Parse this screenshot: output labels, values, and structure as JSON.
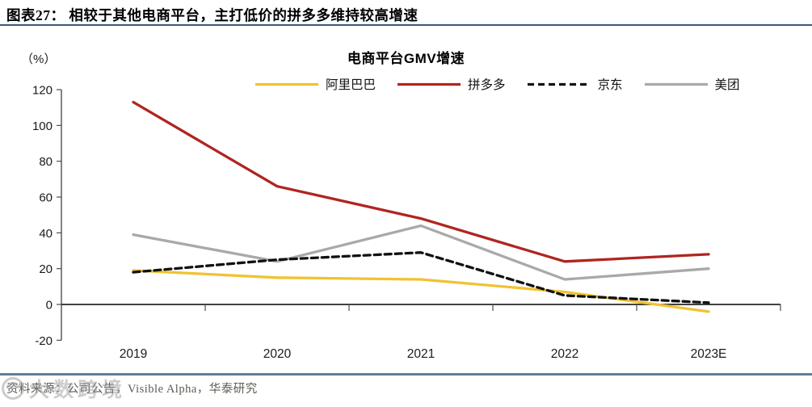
{
  "header": {
    "title": "图表27： 相较于其他电商平台，主打低价的拼多多维持较高增速"
  },
  "chart": {
    "unit_label": "（%）",
    "title": "电商平台GMV增速"
  },
  "chart_data": {
    "type": "line",
    "title": "电商平台GMV增速",
    "unit": "%",
    "x": [
      "2019",
      "2020",
      "2021",
      "2022",
      "2023E"
    ],
    "series": [
      {
        "id": "alibaba",
        "name": "阿里巴巴",
        "color": "#F1C232",
        "style": "solid",
        "values": [
          19,
          15,
          14,
          7,
          -4
        ]
      },
      {
        "id": "pinduoduo",
        "name": "拼多多",
        "color": "#B02520",
        "style": "solid",
        "values": [
          113,
          66,
          48,
          24,
          28
        ]
      },
      {
        "id": "jd",
        "name": "京东",
        "color": "#111111",
        "style": "dashed",
        "values": [
          18,
          25,
          29,
          5,
          1
        ]
      },
      {
        "id": "meituan",
        "name": "美团",
        "color": "#A9A9A9",
        "style": "solid",
        "values": [
          39,
          24,
          44,
          14,
          20
        ]
      }
    ],
    "ylim": [
      -20,
      120
    ],
    "ytick_step": 20,
    "legend_position": "top",
    "grid": false,
    "axis_color": "#4d4d4d"
  },
  "footer": {
    "source": "资料来源：公司公告，Visible Alpha，华泰研究",
    "watermark": "大数跨境"
  }
}
